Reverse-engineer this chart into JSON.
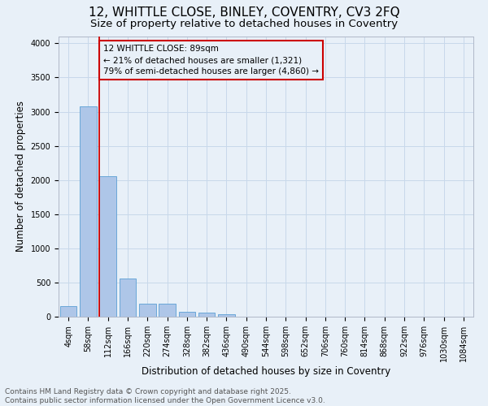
{
  "title_line1": "12, WHITTLE CLOSE, BINLEY, COVENTRY, CV3 2FQ",
  "title_line2": "Size of property relative to detached houses in Coventry",
  "xlabel": "Distribution of detached houses by size in Coventry",
  "ylabel": "Number of detached properties",
  "categories": [
    "4sqm",
    "58sqm",
    "112sqm",
    "166sqm",
    "220sqm",
    "274sqm",
    "328sqm",
    "382sqm",
    "436sqm",
    "490sqm",
    "544sqm",
    "598sqm",
    "652sqm",
    "706sqm",
    "760sqm",
    "814sqm",
    "868sqm",
    "922sqm",
    "976sqm",
    "1030sqm",
    "1084sqm"
  ],
  "values": [
    150,
    3080,
    2060,
    560,
    195,
    185,
    75,
    60,
    30,
    0,
    0,
    0,
    0,
    0,
    0,
    0,
    0,
    0,
    0,
    0,
    0
  ],
  "bar_color": "#aec6e8",
  "bar_edge_color": "#5a9fd4",
  "grid_color": "#c8d8ea",
  "background_color": "#e8f0f8",
  "vline_color": "#cc0000",
  "annotation_text": "12 WHITTLE CLOSE: 89sqm\n← 21% of detached houses are smaller (1,321)\n79% of semi-detached houses are larger (4,860) →",
  "annotation_box_color": "#cc0000",
  "ylim": [
    0,
    4100
  ],
  "yticks": [
    0,
    500,
    1000,
    1500,
    2000,
    2500,
    3000,
    3500,
    4000
  ],
  "footer_text": "Contains HM Land Registry data © Crown copyright and database right 2025.\nContains public sector information licensed under the Open Government Licence v3.0.",
  "title_fontsize": 11,
  "subtitle_fontsize": 9.5,
  "axis_label_fontsize": 8.5,
  "tick_fontsize": 7,
  "annotation_fontsize": 7.5,
  "footer_fontsize": 6.5
}
